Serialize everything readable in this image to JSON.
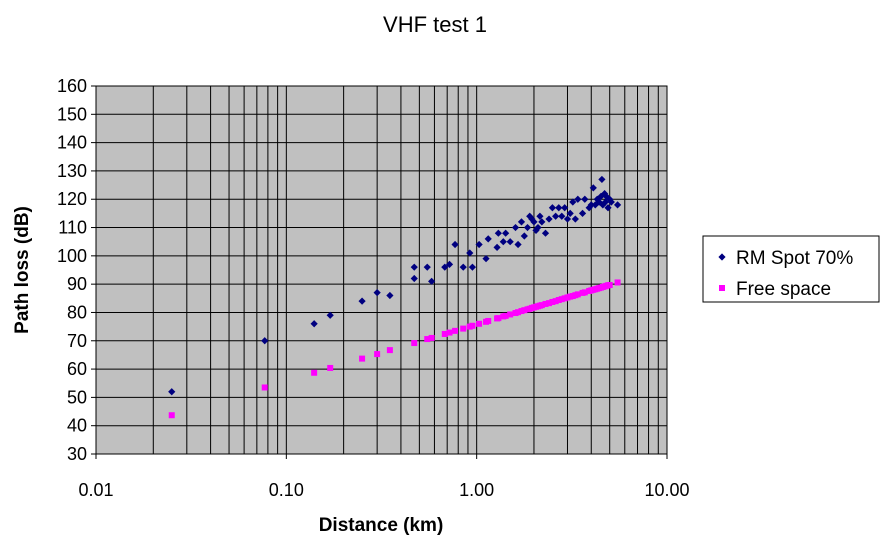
{
  "chart_data": {
    "type": "scatter",
    "title": "VHF test 1",
    "xlabel": "Distance (km)",
    "ylabel": "Path loss (dB)",
    "x_scale": "log",
    "xlim": [
      0.01,
      10
    ],
    "ylim": [
      30,
      160
    ],
    "x_ticks": [
      "0.01",
      "0.10",
      "1.00",
      "10.00"
    ],
    "y_ticks": [
      "30",
      "40",
      "50",
      "60",
      "70",
      "80",
      "90",
      "100",
      "110",
      "120",
      "130",
      "140",
      "150",
      "160"
    ],
    "grid": true,
    "plot_background": "#c0c0c0",
    "legend_position": "right",
    "series": [
      {
        "name": "RM Spot 70%",
        "color": "#000080",
        "marker": "diamond",
        "points": [
          [
            0.025,
            52
          ],
          [
            0.077,
            70
          ],
          [
            0.14,
            76
          ],
          [
            0.17,
            79
          ],
          [
            0.25,
            84
          ],
          [
            0.3,
            87
          ],
          [
            0.35,
            86
          ],
          [
            0.47,
            92
          ],
          [
            0.47,
            96
          ],
          [
            0.55,
            96
          ],
          [
            0.58,
            91
          ],
          [
            0.68,
            96
          ],
          [
            0.72,
            97
          ],
          [
            0.77,
            104
          ],
          [
            0.85,
            96
          ],
          [
            0.92,
            101
          ],
          [
            0.95,
            96
          ],
          [
            1.03,
            104
          ],
          [
            1.12,
            99
          ],
          [
            1.15,
            106
          ],
          [
            1.28,
            103
          ],
          [
            1.3,
            108
          ],
          [
            1.38,
            105
          ],
          [
            1.42,
            108
          ],
          [
            1.5,
            105
          ],
          [
            1.6,
            110
          ],
          [
            1.65,
            104
          ],
          [
            1.72,
            112
          ],
          [
            1.78,
            107
          ],
          [
            1.85,
            110
          ],
          [
            1.9,
            114
          ],
          [
            1.95,
            113
          ],
          [
            2.0,
            112
          ],
          [
            2.05,
            109
          ],
          [
            2.1,
            110
          ],
          [
            2.15,
            114
          ],
          [
            2.2,
            112
          ],
          [
            2.3,
            108
          ],
          [
            2.4,
            113
          ],
          [
            2.5,
            117
          ],
          [
            2.6,
            114
          ],
          [
            2.7,
            117
          ],
          [
            2.8,
            114
          ],
          [
            2.9,
            117
          ],
          [
            3.0,
            113
          ],
          [
            3.1,
            115
          ],
          [
            3.2,
            119
          ],
          [
            3.3,
            113
          ],
          [
            3.4,
            120
          ],
          [
            3.6,
            115
          ],
          [
            3.7,
            120
          ],
          [
            3.9,
            117
          ],
          [
            4.0,
            118
          ],
          [
            4.1,
            124
          ],
          [
            4.2,
            118
          ],
          [
            4.3,
            120
          ],
          [
            4.4,
            119
          ],
          [
            4.5,
            121
          ],
          [
            4.55,
            127
          ],
          [
            4.6,
            118
          ],
          [
            4.7,
            122
          ],
          [
            4.75,
            119
          ],
          [
            4.8,
            121
          ],
          [
            4.9,
            117
          ],
          [
            5.0,
            120
          ],
          [
            5.1,
            119
          ],
          [
            5.5,
            118
          ]
        ]
      },
      {
        "name": "Free space",
        "color": "#ff00ff",
        "marker": "square",
        "points": [
          [
            0.025,
            43.7
          ],
          [
            0.077,
            53.5
          ],
          [
            0.14,
            58.7
          ],
          [
            0.17,
            60.4
          ],
          [
            0.25,
            63.7
          ],
          [
            0.3,
            65.3
          ],
          [
            0.35,
            66.7
          ],
          [
            0.47,
            69.2
          ],
          [
            0.55,
            70.6
          ],
          [
            0.58,
            71.0
          ],
          [
            0.68,
            72.4
          ],
          [
            0.72,
            72.9
          ],
          [
            0.77,
            73.5
          ],
          [
            0.85,
            74.3
          ],
          [
            0.92,
            75.0
          ],
          [
            0.95,
            75.3
          ],
          [
            1.03,
            76.0
          ],
          [
            1.12,
            76.7
          ],
          [
            1.15,
            77.0
          ],
          [
            1.28,
            77.9
          ],
          [
            1.3,
            78.0
          ],
          [
            1.38,
            78.6
          ],
          [
            1.42,
            78.8
          ],
          [
            1.5,
            79.3
          ],
          [
            1.6,
            79.8
          ],
          [
            1.65,
            80.1
          ],
          [
            1.72,
            80.5
          ],
          [
            1.78,
            80.8
          ],
          [
            1.85,
            81.1
          ],
          [
            1.9,
            81.3
          ],
          [
            1.95,
            81.6
          ],
          [
            2.0,
            81.8
          ],
          [
            2.05,
            82.0
          ],
          [
            2.1,
            82.2
          ],
          [
            2.15,
            82.4
          ],
          [
            2.2,
            82.6
          ],
          [
            2.3,
            83.0
          ],
          [
            2.4,
            83.3
          ],
          [
            2.5,
            83.7
          ],
          [
            2.6,
            84.0
          ],
          [
            2.7,
            84.4
          ],
          [
            2.8,
            84.7
          ],
          [
            2.9,
            85.0
          ],
          [
            3.0,
            85.3
          ],
          [
            3.1,
            85.6
          ],
          [
            3.2,
            85.8
          ],
          [
            3.3,
            86.1
          ],
          [
            3.4,
            86.4
          ],
          [
            3.6,
            86.9
          ],
          [
            3.7,
            87.1
          ],
          [
            3.9,
            87.6
          ],
          [
            4.0,
            87.8
          ],
          [
            4.1,
            88.0
          ],
          [
            4.2,
            88.2
          ],
          [
            4.3,
            88.4
          ],
          [
            4.4,
            88.6
          ],
          [
            4.5,
            88.8
          ],
          [
            4.6,
            89.0
          ],
          [
            4.7,
            89.2
          ],
          [
            4.8,
            89.4
          ],
          [
            4.9,
            89.6
          ],
          [
            5.0,
            89.7
          ],
          [
            5.5,
            90.6
          ]
        ]
      }
    ]
  }
}
